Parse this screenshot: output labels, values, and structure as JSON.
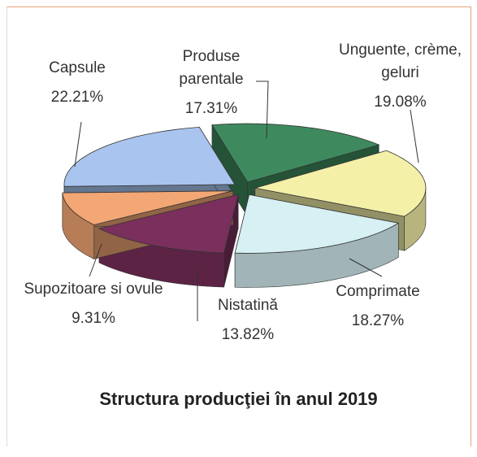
{
  "chart_data": {
    "type": "pie",
    "title": "Structura producţiei în anul 2019",
    "categories": [
      "Capsule",
      "Produse parentale",
      "Unguente, crème, geluri",
      "Comprimate",
      "Nistatină",
      "Supozitoare si ovule"
    ],
    "values": [
      22.21,
      17.31,
      19.08,
      18.27,
      13.82,
      9.31
    ],
    "value_labels": [
      "22.21%",
      "17.31%",
      "19.08%",
      "18.27%",
      "13.82%",
      "9.31%"
    ],
    "colors": [
      "#a9c4ee",
      "#3e8a5e",
      "#f4f0a8",
      "#d6f0f4",
      "#7a2f5c",
      "#f2a774"
    ]
  }
}
